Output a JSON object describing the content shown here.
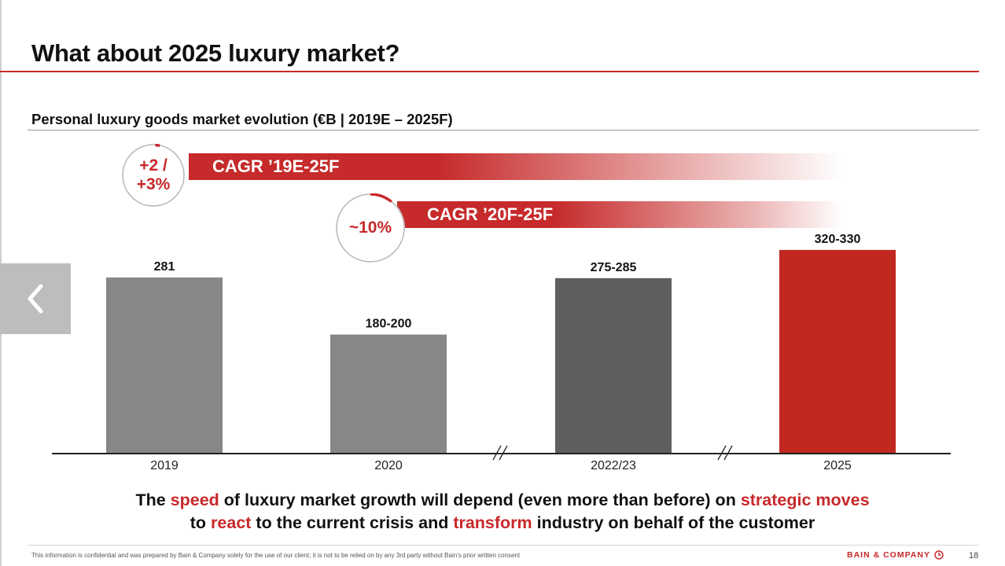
{
  "slide": {
    "title": "What about 2025 luxury market?",
    "chart_title": "Personal luxury goods market evolution (€B | 2019E – 2025F)",
    "cagr": [
      {
        "value": "+2 /\n+3%",
        "label": "CAGR ’19E-25F"
      },
      {
        "value": "~10%",
        "label": "CAGR ’20F-25F"
      }
    ],
    "takeaway": {
      "l1": [
        "The ",
        "speed",
        " of luxury market growth will depend (even more than before) on ",
        "strategic moves"
      ],
      "l2": [
        "to ",
        "react",
        " to the current crisis and ",
        "transform",
        " industry on behalf of the customer"
      ]
    },
    "footer": {
      "disclaimer": "This information is confidential and was prepared by Bain & Company solely for the use of our client; it is not to be relied on by any 3rd party without Bain’s prior written consent",
      "brand": "BAIN & COMPANY",
      "page_number": "18"
    },
    "nav": {
      "prev_icon": "chevron-left-icon"
    }
  },
  "colors": {
    "accent": "#c8282a",
    "bar_light": "#878787",
    "bar_dark": "#5f5f5f",
    "bar_highlight": "#c1281f"
  },
  "chart_data": {
    "type": "bar",
    "title": "Personal luxury goods market evolution (€B | 2019E – 2025F)",
    "categories": [
      "2019",
      "2020",
      "2022/23",
      "2025"
    ],
    "values": [
      281,
      190,
      280,
      325
    ],
    "value_labels": [
      "281",
      "180-200",
      "275-285",
      "320-330"
    ],
    "ranges": [
      [
        281,
        281
      ],
      [
        180,
        200
      ],
      [
        275,
        285
      ],
      [
        320,
        330
      ]
    ],
    "ylim": [
      0,
      340
    ],
    "axis_breaks_between": [
      [
        "2020",
        "2022/23"
      ],
      [
        "2022/23",
        "2025"
      ]
    ],
    "grid": false,
    "legend": "none",
    "annotations": [
      {
        "text": "+2 / +3%",
        "label": "CAGR ’19E-25F"
      },
      {
        "text": "~10%",
        "label": "CAGR ’20F-25F"
      }
    ]
  }
}
